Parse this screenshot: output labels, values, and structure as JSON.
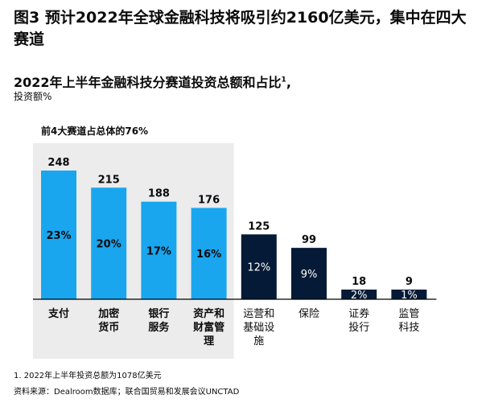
{
  "figure_title": "图3 预计2022年全球金融科技将吸引约2160亿美元，集中在四大赛道",
  "chart_title": "2022年上半年金融科技分赛道投资总额和占比",
  "chart_title_sup": "1",
  "chart_title_suffix": ",",
  "unit_label": "投资额%",
  "highlight_label": "前4大赛道占总体的76%",
  "footnote": "1.   2022年上半年投资总额为1078亿美元",
  "source": "资料来源：Dealroom数据库；联合国贸易和发展会议UNCTAD",
  "colors": {
    "highlight_bar": "#19a6ef",
    "other_bar": "#041a36",
    "highlight_bg": "#ececec",
    "axis": "#000000",
    "label_on_light": "#0b0b0b",
    "label_on_dark": "#ffffff"
  },
  "chart_data": {
    "type": "bar",
    "categories": [
      "支付",
      "加密货币",
      "银行服务",
      "资产和财富管理",
      "运营和基础设施",
      "保险",
      "证券投行",
      "监管科技"
    ],
    "category_lines": [
      [
        "支付"
      ],
      [
        "加密",
        "货币"
      ],
      [
        "银行",
        "服务"
      ],
      [
        "资产和",
        "财富管",
        "理"
      ],
      [
        "运营和",
        "基础设",
        "施"
      ],
      [
        "保险"
      ],
      [
        "证券",
        "投行"
      ],
      [
        "监管",
        "科技"
      ]
    ],
    "values": [
      248,
      215,
      188,
      176,
      125,
      99,
      18,
      9
    ],
    "shares": [
      "23%",
      "20%",
      "17%",
      "16%",
      "12%",
      "9%",
      "2%",
      "1%"
    ],
    "highlighted": [
      true,
      true,
      true,
      true,
      false,
      false,
      false,
      false
    ],
    "ylim": [
      0,
      248
    ]
  }
}
